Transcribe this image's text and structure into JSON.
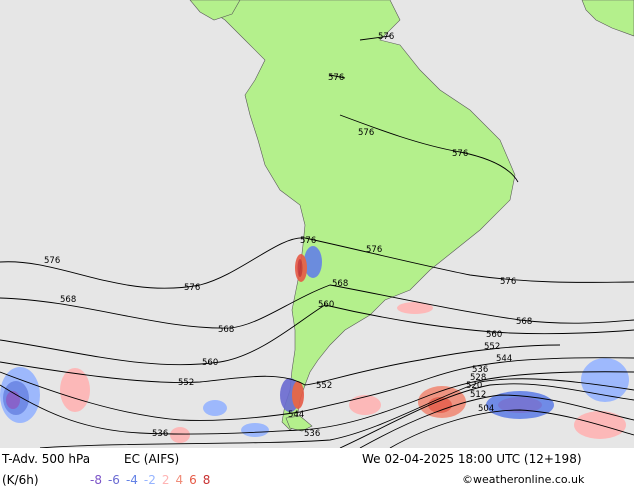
{
  "footer": {
    "title": "T-Adv. 500 hPa",
    "model": "EC (AIFS)",
    "units": "(K/6h)",
    "datetime": "We 02-04-2025 18:00 UTC (12+198)",
    "credit": "©weatheronline.co.uk"
  },
  "legend": [
    {
      "label": "-8",
      "color": "#7d55c8"
    },
    {
      "label": "-6",
      "color": "#6a6ad2"
    },
    {
      "label": "-4",
      "color": "#6482e6"
    },
    {
      "label": "-2",
      "color": "#96b4ff"
    },
    {
      "label": "2",
      "color": "#ffb4b4"
    },
    {
      "label": "4",
      "color": "#f08c78"
    },
    {
      "label": "6",
      "color": "#e65a46"
    },
    {
      "label": "8",
      "color": "#c83232"
    }
  ],
  "contour_labels": {
    "c576": "576",
    "c568": "568",
    "c560": "560",
    "c552": "552",
    "c544": "544",
    "c536": "536",
    "c528": "528",
    "c520": "520",
    "c512": "512",
    "c504": "504"
  },
  "colors": {
    "ocean": "#e6e6e6",
    "land": "#b4f08c",
    "contour": "#000000"
  }
}
